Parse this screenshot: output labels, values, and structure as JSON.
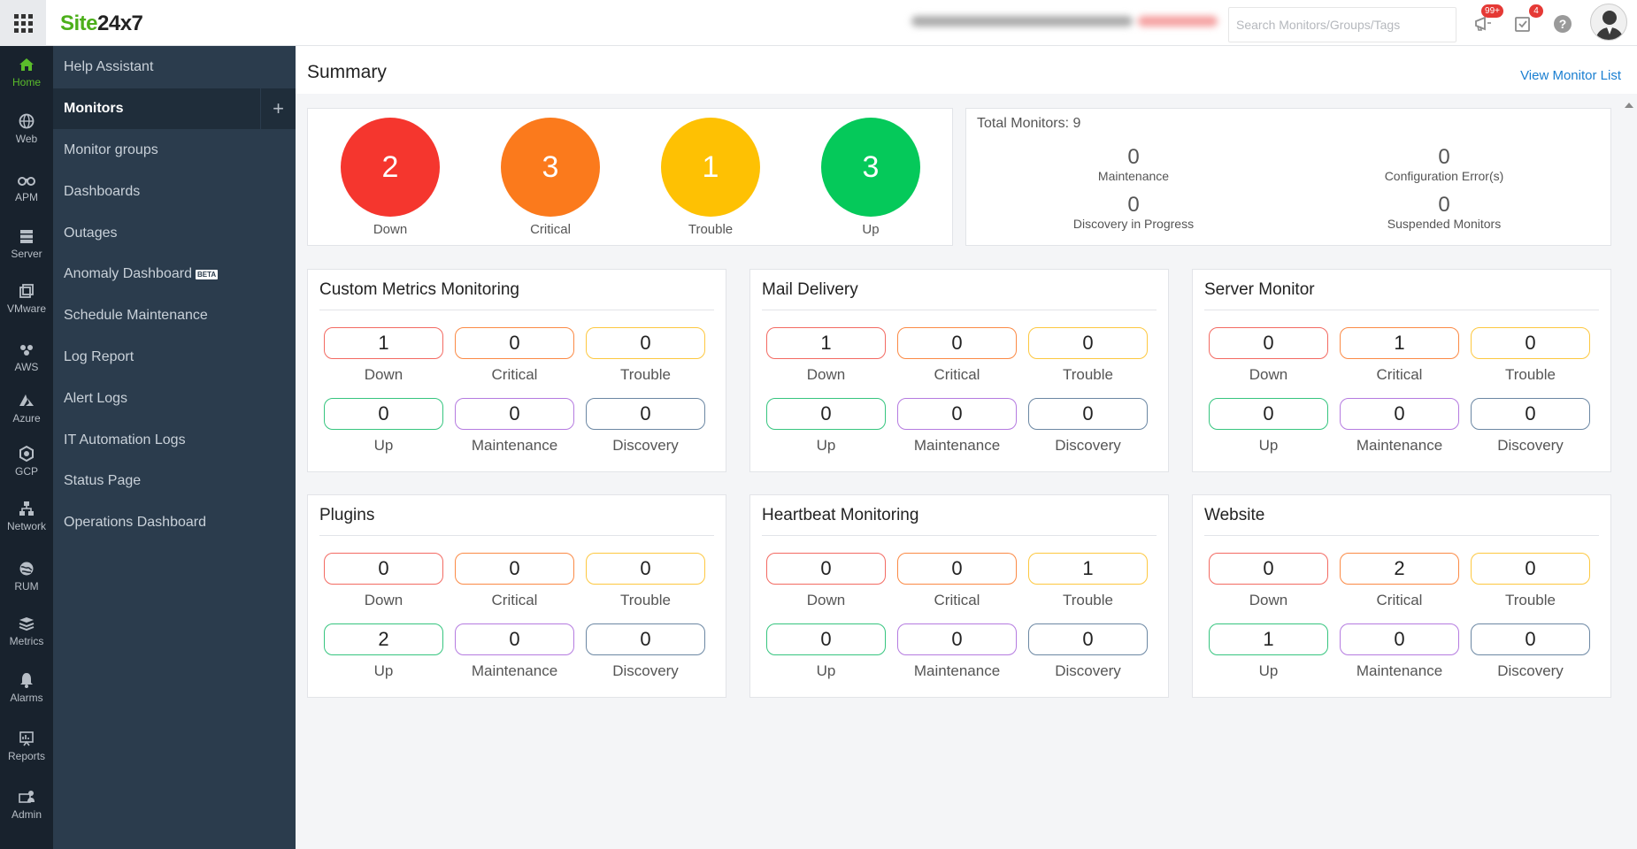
{
  "app": {
    "logo_green": "Site",
    "logo_dark": "24x7",
    "search_placeholder": "Search Monitors/Groups/Tags",
    "notifications_badge": "99+",
    "tasks_badge": "4",
    "help_label": "?"
  },
  "rail": [
    {
      "label": "Home",
      "icon": "home-icon"
    },
    {
      "label": "Web",
      "icon": "globe-icon"
    },
    {
      "label": "APM",
      "icon": "binoculars-icon"
    },
    {
      "label": "Server",
      "icon": "server-icon"
    },
    {
      "label": "VMware",
      "icon": "vmware-icon"
    },
    {
      "label": "AWS",
      "icon": "aws-icon"
    },
    {
      "label": "Azure",
      "icon": "azure-icon"
    },
    {
      "label": "GCP",
      "icon": "gcp-icon"
    },
    {
      "label": "Network",
      "icon": "network-icon"
    },
    {
      "label": "RUM",
      "icon": "rum-icon"
    },
    {
      "label": "Metrics",
      "icon": "metrics-icon"
    },
    {
      "label": "Alarms",
      "icon": "bell-icon"
    },
    {
      "label": "Reports",
      "icon": "reports-icon"
    },
    {
      "label": "Admin",
      "icon": "admin-icon"
    }
  ],
  "sidebar": [
    {
      "label": "Help Assistant"
    },
    {
      "label": "Monitors"
    },
    {
      "label": "Monitor groups"
    },
    {
      "label": "Dashboards"
    },
    {
      "label": "Outages"
    },
    {
      "label": "Anomaly Dashboard",
      "badge": "BETA"
    },
    {
      "label": "Schedule Maintenance"
    },
    {
      "label": "Log Report"
    },
    {
      "label": "Alert Logs"
    },
    {
      "label": "IT Automation Logs"
    },
    {
      "label": "Status Page"
    },
    {
      "label": "Operations Dashboard"
    }
  ],
  "header": {
    "title": "Summary",
    "view_link": "View Monitor List"
  },
  "summary": {
    "circles": [
      {
        "value": "2",
        "label": "Down",
        "color": "#f5362e"
      },
      {
        "value": "3",
        "label": "Critical",
        "color": "#fb7a1c"
      },
      {
        "value": "1",
        "label": "Trouble",
        "color": "#fec103"
      },
      {
        "value": "3",
        "label": "Up",
        "color": "#05c95a"
      }
    ],
    "total_label": "Total Monitors: 9",
    "stats": [
      {
        "value": "0",
        "label": "Maintenance"
      },
      {
        "value": "0",
        "label": "Configuration Error(s)"
      },
      {
        "value": "0",
        "label": "Discovery in Progress"
      },
      {
        "value": "0",
        "label": "Suspended Monitors"
      }
    ]
  },
  "status_colors": {
    "down": "#f36a62",
    "critical": "#fb8a45",
    "trouble": "#fdc840",
    "up": "#36c57f",
    "maintenance": "#b57be0",
    "discovery": "#6b87a3"
  },
  "groups": [
    {
      "title": "Custom Metrics Monitoring",
      "stats": [
        {
          "value": "1",
          "label": "Down"
        },
        {
          "value": "0",
          "label": "Critical"
        },
        {
          "value": "0",
          "label": "Trouble"
        },
        {
          "value": "0",
          "label": "Up"
        },
        {
          "value": "0",
          "label": "Maintenance"
        },
        {
          "value": "0",
          "label": "Discovery"
        }
      ]
    },
    {
      "title": "Mail Delivery",
      "stats": [
        {
          "value": "1",
          "label": "Down"
        },
        {
          "value": "0",
          "label": "Critical"
        },
        {
          "value": "0",
          "label": "Trouble"
        },
        {
          "value": "0",
          "label": "Up"
        },
        {
          "value": "0",
          "label": "Maintenance"
        },
        {
          "value": "0",
          "label": "Discovery"
        }
      ]
    },
    {
      "title": "Server Monitor",
      "stats": [
        {
          "value": "0",
          "label": "Down"
        },
        {
          "value": "1",
          "label": "Critical"
        },
        {
          "value": "0",
          "label": "Trouble"
        },
        {
          "value": "0",
          "label": "Up"
        },
        {
          "value": "0",
          "label": "Maintenance"
        },
        {
          "value": "0",
          "label": "Discovery"
        }
      ]
    },
    {
      "title": "Plugins",
      "stats": [
        {
          "value": "0",
          "label": "Down"
        },
        {
          "value": "0",
          "label": "Critical"
        },
        {
          "value": "0",
          "label": "Trouble"
        },
        {
          "value": "2",
          "label": "Up"
        },
        {
          "value": "0",
          "label": "Maintenance"
        },
        {
          "value": "0",
          "label": "Discovery"
        }
      ]
    },
    {
      "title": "Heartbeat Monitoring",
      "stats": [
        {
          "value": "0",
          "label": "Down"
        },
        {
          "value": "0",
          "label": "Critical"
        },
        {
          "value": "1",
          "label": "Trouble"
        },
        {
          "value": "0",
          "label": "Up"
        },
        {
          "value": "0",
          "label": "Maintenance"
        },
        {
          "value": "0",
          "label": "Discovery"
        }
      ]
    },
    {
      "title": "Website",
      "stats": [
        {
          "value": "0",
          "label": "Down"
        },
        {
          "value": "2",
          "label": "Critical"
        },
        {
          "value": "0",
          "label": "Trouble"
        },
        {
          "value": "1",
          "label": "Up"
        },
        {
          "value": "0",
          "label": "Maintenance"
        },
        {
          "value": "0",
          "label": "Discovery"
        }
      ]
    }
  ]
}
